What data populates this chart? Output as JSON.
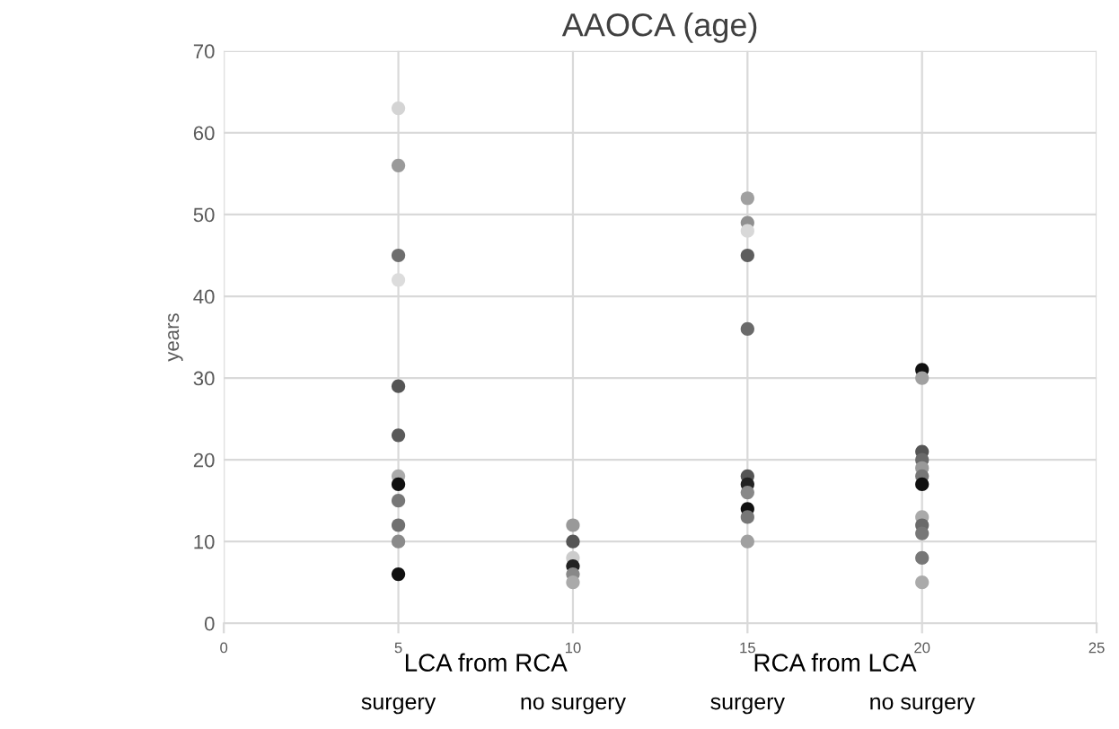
{
  "chart_data": {
    "type": "scatter",
    "title": "AAOCA (age)",
    "ylabel": "years",
    "x": [
      5,
      5,
      5,
      5,
      5,
      5,
      5,
      5,
      5,
      5,
      5,
      5,
      10,
      10,
      10,
      10,
      10,
      10,
      15,
      15,
      15,
      15,
      15,
      15,
      15,
      15,
      15,
      15,
      15,
      20,
      20,
      20,
      20,
      20,
      20,
      20,
      20,
      20,
      20,
      20,
      20
    ],
    "values": [
      63,
      56,
      45,
      42,
      29,
      23,
      18,
      17,
      15,
      12,
      10,
      6,
      12,
      10,
      8,
      7,
      6,
      5,
      52,
      49,
      48,
      45,
      36,
      18,
      17,
      16,
      14,
      13,
      10,
      31,
      30,
      21,
      20,
      19,
      18,
      17,
      13,
      12,
      11,
      8,
      5
    ],
    "colors": [
      "#d4d4d4",
      "#9a9a9a",
      "#6e6e6e",
      "#dcdcdc",
      "#555555",
      "#5a5a5a",
      "#aaaaaa",
      "#111111",
      "#777777",
      "#707070",
      "#8a8a8a",
      "#111111",
      "#999999",
      "#555555",
      "#cccccc",
      "#222222",
      "#888888",
      "#aaaaaa",
      "#a0a0a0",
      "#909090",
      "#d8d8d8",
      "#5e5e5e",
      "#6a6a6a",
      "#555555",
      "#222222",
      "#888888",
      "#111111",
      "#777777",
      "#a0a0a0",
      "#111111",
      "#a0a0a0",
      "#555555",
      "#6a6a6a",
      "#999999",
      "#777777",
      "#111111",
      "#aaaaaa",
      "#6a6a6a",
      "#777777",
      "#777777",
      "#aaaaaa"
    ],
    "xlim": [
      0,
      25
    ],
    "xticks": [
      0,
      5,
      10,
      15,
      20,
      25
    ],
    "ylim": [
      0,
      70
    ],
    "yticks": [
      0,
      10,
      20,
      30,
      40,
      50,
      60,
      70
    ],
    "grid": true,
    "marker": "circle",
    "annotations": [
      "LCA from RCA",
      "RCA from LCA",
      "surgery",
      "no surgery",
      "surgery",
      "no surgery"
    ]
  }
}
